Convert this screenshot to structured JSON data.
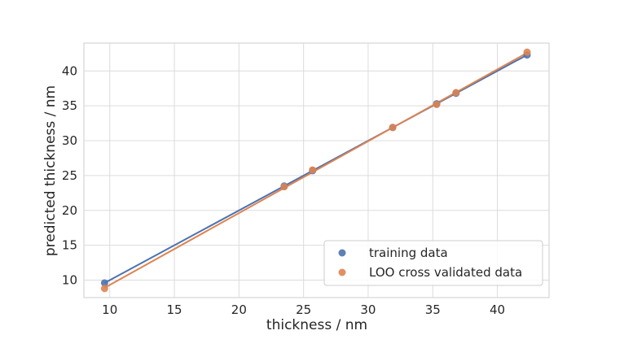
{
  "chart_data": {
    "type": "scatter",
    "title": "",
    "xlabel": "thickness / nm",
    "ylabel": "predicted thickness / nm",
    "xlim": [
      8,
      44
    ],
    "ylim": [
      7.5,
      44
    ],
    "xticks": [
      10,
      15,
      20,
      25,
      30,
      35,
      40
    ],
    "yticks": [
      10,
      15,
      20,
      25,
      30,
      35,
      40
    ],
    "grid": true,
    "legend_position": "lower-right",
    "series": [
      {
        "name": "training data",
        "color": "#4c72b0",
        "x": [
          9.6,
          23.5,
          25.7,
          31.9,
          35.3,
          36.8,
          42.3
        ],
        "y": [
          9.6,
          23.5,
          25.7,
          31.9,
          35.3,
          36.8,
          42.3
        ],
        "fit": {
          "x": [
            9.6,
            42.3
          ],
          "y": [
            9.6,
            42.3
          ]
        }
      },
      {
        "name": "LOO cross validated data",
        "color": "#dd8452",
        "x": [
          9.6,
          23.5,
          25.7,
          31.9,
          35.3,
          36.8,
          42.3
        ],
        "y": [
          8.8,
          23.4,
          25.8,
          31.9,
          35.2,
          36.9,
          42.7
        ],
        "fit": {
          "x": [
            9.6,
            42.3
          ],
          "y": [
            8.9,
            42.6
          ]
        }
      }
    ]
  }
}
